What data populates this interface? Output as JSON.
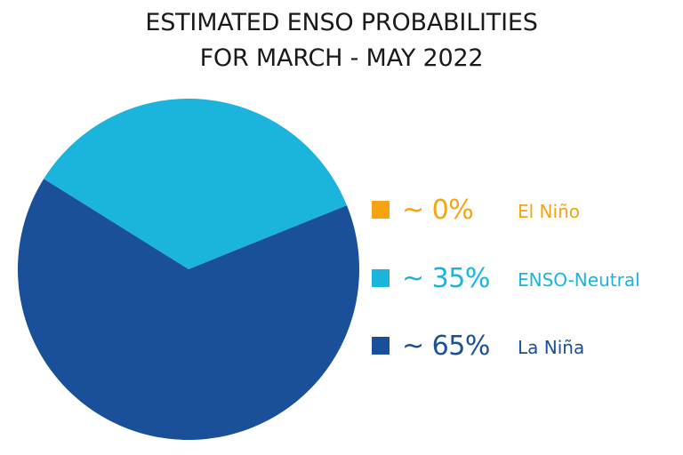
{
  "chart_data": {
    "type": "pie",
    "title_lines": [
      "ESTIMATED ENSO PROBABILITIES",
      "FOR MARCH - MAY 2022"
    ],
    "categories": [
      "El Niño",
      "ENSO-Neutral",
      "La Niña"
    ],
    "values": [
      0,
      35,
      65
    ],
    "value_labels": [
      "~ 0%",
      "~ 35%",
      "~ 65%"
    ],
    "colors": [
      "#f5a310",
      "#1ab4dc",
      "#1a4f99"
    ],
    "legend_placement": "right"
  }
}
